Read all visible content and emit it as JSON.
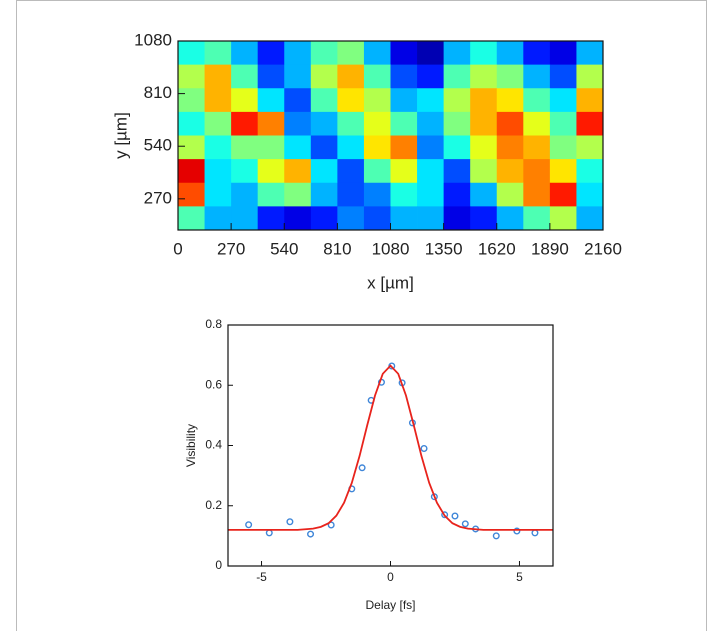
{
  "chart_data": [
    {
      "type": "heatmap",
      "xlabel": "x [µm]",
      "ylabel": "y [µm]",
      "colormap": "jet",
      "xlim": [
        0,
        2160
      ],
      "xticks": [
        0,
        270,
        540,
        810,
        1080,
        1350,
        1620,
        1890,
        2160
      ],
      "ylim": [
        110,
        1080
      ],
      "yticks": [
        270,
        540,
        810,
        1080
      ],
      "xbins": [
        0,
        135,
        270,
        405,
        540,
        675,
        810,
        945,
        1080,
        1215,
        1350,
        1485,
        1620,
        1755,
        1890,
        2025,
        2160
      ],
      "ybins": [
        1080,
        958.75,
        837.5,
        716.25,
        595,
        473.75,
        352.5,
        231.25,
        110
      ],
      "z": [
        [
          0.4,
          0.45,
          0.3,
          0.15,
          0.3,
          0.45,
          0.5,
          0.3,
          0.1,
          0.05,
          0.3,
          0.4,
          0.3,
          0.15,
          0.1,
          0.3
        ],
        [
          0.55,
          0.7,
          0.45,
          0.2,
          0.3,
          0.55,
          0.7,
          0.45,
          0.2,
          0.15,
          0.45,
          0.55,
          0.5,
          0.3,
          0.2,
          0.55
        ],
        [
          0.5,
          0.7,
          0.6,
          0.35,
          0.2,
          0.45,
          0.65,
          0.55,
          0.3,
          0.35,
          0.55,
          0.7,
          0.65,
          0.45,
          0.35,
          0.7
        ],
        [
          0.4,
          0.5,
          0.85,
          0.75,
          0.25,
          0.3,
          0.45,
          0.6,
          0.45,
          0.3,
          0.5,
          0.7,
          0.8,
          0.6,
          0.45,
          0.85
        ],
        [
          0.55,
          0.4,
          0.5,
          0.5,
          0.35,
          0.2,
          0.35,
          0.65,
          0.75,
          0.25,
          0.4,
          0.6,
          0.75,
          0.7,
          0.5,
          0.55
        ],
        [
          0.9,
          0.35,
          0.4,
          0.6,
          0.7,
          0.35,
          0.2,
          0.45,
          0.6,
          0.35,
          0.2,
          0.55,
          0.7,
          0.75,
          0.65,
          0.4
        ],
        [
          0.8,
          0.35,
          0.3,
          0.45,
          0.5,
          0.3,
          0.2,
          0.25,
          0.4,
          0.35,
          0.15,
          0.3,
          0.55,
          0.75,
          0.85,
          0.35
        ],
        [
          0.45,
          0.3,
          0.3,
          0.15,
          0.1,
          0.15,
          0.25,
          0.2,
          0.3,
          0.3,
          0.1,
          0.15,
          0.3,
          0.45,
          0.55,
          0.3
        ]
      ]
    },
    {
      "type": "scatter",
      "xlabel": "Delay [fs]",
      "ylabel": "Visibility",
      "xlim": [
        -6.3,
        6.3
      ],
      "xticks": [
        -5,
        0,
        5
      ],
      "ylim": [
        0,
        0.8
      ],
      "yticks": [
        0,
        0.2,
        0.4,
        0.6,
        0.8
      ],
      "series": [
        {
          "style": "markers",
          "color": "#3f86d8",
          "x": [
            -5.5,
            -4.7,
            -3.9,
            -3.1,
            -2.3,
            -1.5,
            -1.1,
            -0.75,
            -0.35,
            0.05,
            0.45,
            0.85,
            1.3,
            1.7,
            2.1,
            2.5,
            2.9,
            3.3,
            4.1,
            4.9,
            5.6
          ],
          "values": [
            0.137,
            0.11,
            0.147,
            0.106,
            0.136,
            0.256,
            0.326,
            0.55,
            0.61,
            0.664,
            0.608,
            0.475,
            0.39,
            0.23,
            0.17,
            0.166,
            0.14,
            0.123,
            0.1,
            0.116,
            0.11
          ]
        },
        {
          "style": "line",
          "color": "#e8231c",
          "x": [
            -6.3,
            -4.5,
            -3.6,
            -3.0,
            -2.7,
            -2.4,
            -2.1,
            -1.8,
            -1.5,
            -1.2,
            -0.9,
            -0.6,
            -0.3,
            0,
            0.3,
            0.6,
            0.9,
            1.2,
            1.5,
            1.8,
            2.1,
            2.4,
            2.7,
            3.0,
            3.6,
            4.5,
            6.3
          ],
          "values": [
            0.12,
            0.12,
            0.12,
            0.124,
            0.13,
            0.142,
            0.167,
            0.21,
            0.276,
            0.365,
            0.468,
            0.566,
            0.638,
            0.665,
            0.638,
            0.566,
            0.468,
            0.365,
            0.276,
            0.21,
            0.167,
            0.142,
            0.13,
            0.124,
            0.12,
            0.12,
            0.12
          ]
        }
      ]
    }
  ]
}
